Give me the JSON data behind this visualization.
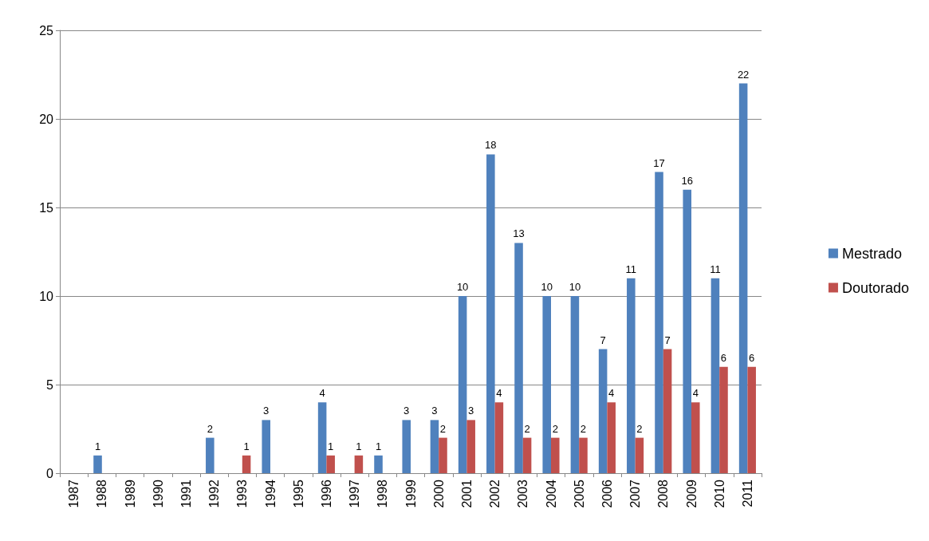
{
  "chart_data": {
    "type": "bar",
    "categories": [
      "1987",
      "1988",
      "1989",
      "1990",
      "1991",
      "1992",
      "1993",
      "1994",
      "1995",
      "1996",
      "1997",
      "1998",
      "1999",
      "2000",
      "2001",
      "2002",
      "2003",
      "2004",
      "2005",
      "2006",
      "2007",
      "2008",
      "2009",
      "2010",
      "2011"
    ],
    "series": [
      {
        "name": "Mestrado",
        "color": "#4f81bd",
        "values": [
          null,
          1,
          null,
          null,
          null,
          2,
          null,
          3,
          null,
          4,
          null,
          1,
          3,
          3,
          10,
          18,
          13,
          10,
          10,
          7,
          11,
          17,
          16,
          11,
          22
        ]
      },
      {
        "name": "Doutorado",
        "color": "#c0504d",
        "values": [
          null,
          null,
          null,
          null,
          null,
          null,
          1,
          null,
          null,
          1,
          1,
          null,
          null,
          2,
          3,
          4,
          2,
          2,
          2,
          4,
          2,
          7,
          4,
          6,
          6
        ]
      }
    ],
    "ylim": [
      0,
      25
    ],
    "yticks": [
      0,
      5,
      10,
      15,
      20,
      25
    ],
    "grid": "y",
    "legend": "right",
    "data_labels": true
  }
}
